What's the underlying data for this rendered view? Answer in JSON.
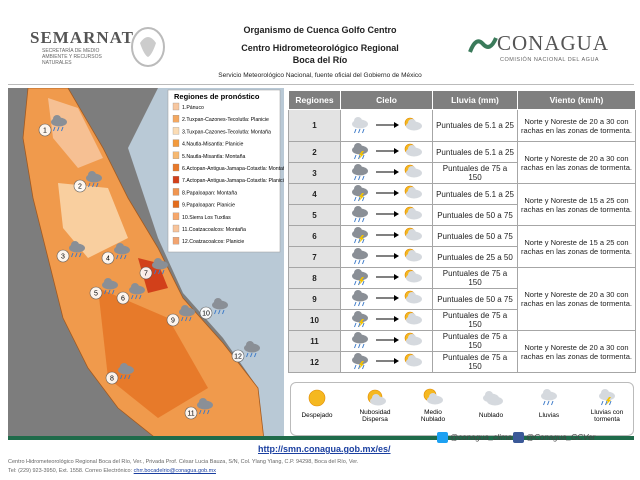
{
  "header": {
    "left_logo": "SEMARNAT",
    "left_sub": "SECRETARÍA DE MEDIO AMBIENTE Y RECURSOS NATURALES",
    "line1": "Organismo de Cuenca Golfo Centro",
    "line2": "Centro Hidrometeorológico Regional",
    "line3": "Boca del Río",
    "line4": "Servicio Meteorológico Nacional, fuente oficial del Gobierno de México",
    "right_logo": "CONAGUA",
    "right_sub": "COMISIÓN NACIONAL DEL AGUA"
  },
  "map": {
    "legend_title": "Regiones de pronóstico",
    "legend": [
      {
        "label": "1.Pánuco",
        "color": "#f7c7a0"
      },
      {
        "label": "2.Tuxpan-Cazones-Tecolutla: Planicie",
        "color": "#f4a860"
      },
      {
        "label": "3.Tuxpan-Cazones-Tecolutla: Montaña",
        "color": "#fbdcb4"
      },
      {
        "label": "4.Nautla-Misantla: Planicie",
        "color": "#f39a3c"
      },
      {
        "label": "5.Nautla-Misantla: Montaña",
        "color": "#f6b870"
      },
      {
        "label": "6.Actopan-Antigua-Jamapa-Cotaxtla: Montaña",
        "color": "#e8792a"
      },
      {
        "label": "7.Actopan-Antigua-Jamapa-Cotaxtla: Planicie",
        "color": "#d2401a"
      },
      {
        "label": "8.Papaloapan: Montaña",
        "color": "#f09550"
      },
      {
        "label": "9.Papaloapan: Planicie",
        "color": "#e36c1c"
      },
      {
        "label": "10.Sierra Los Tuxtlas",
        "color": "#f6a76b"
      },
      {
        "label": "11.Coatzacoalcos: Montaña",
        "color": "#f8c49a"
      },
      {
        "label": "12.Coatzacoalcos: Planicie",
        "color": "#f2a470"
      }
    ],
    "markers": [
      "1",
      "2",
      "3",
      "4",
      "5",
      "6",
      "7",
      "8",
      "9",
      "10",
      "11",
      "12"
    ]
  },
  "table": {
    "headers": [
      "Regiones",
      "Cielo",
      "Lluvia (mm)",
      "Viento (km/h)"
    ],
    "rows": [
      [
        "1",
        "Puntuales de 5.1 a 25",
        "Norte y Noreste de 20 a 30 con rachas en las zonas de tormenta."
      ],
      [
        "2",
        "Puntuales de 5.1 a 25",
        "Norte y Noreste de 20 a 30 con rachas en las zonas de tormenta."
      ],
      [
        "3",
        "Puntuales de 75 a 150",
        null
      ],
      [
        "4",
        "Puntuales de 5.1 a 25",
        "Norte y Noreste de 15 a 25 con rachas en las zonas de tormenta."
      ],
      [
        "5",
        "Puntuales de 50 a 75",
        null
      ],
      [
        "6",
        "Puntuales de 50 a 75",
        "Norte y Noreste de 15 a 25 con rachas en las zonas de tormenta."
      ],
      [
        "7",
        "Puntuales de 25 a 50",
        null
      ],
      [
        "8",
        "Puntuales de 75 a 150",
        "Norte y Noreste de 20 a 30 con rachas en las zonas de tormenta."
      ],
      [
        "9",
        "Puntuales de 50 a 75",
        null
      ],
      [
        "10",
        "Puntuales de 75 a 150",
        null
      ],
      [
        "11",
        "Puntuales de 75 a 150",
        "Norte y Noreste de 20 a 30 con rachas en las zonas de tormenta."
      ],
      [
        "12",
        "Puntuales de 75 a 150",
        null
      ]
    ]
  },
  "icon_legend": [
    "Despejado",
    "Nubosidad Dispersa",
    "Medio Nublado",
    "Nublado",
    "Lluvias",
    "Lluvias con tormenta"
  ],
  "social": [
    "@conagua_clima",
    "@Conagua_GCVer"
  ],
  "url": "http://smn.conagua.gob.mx/es/",
  "footer": {
    "line1": "Centro Hidrometeorológico Regional Boca del Río, Ver., Privada Prof. César Lucia Bauza, S/N, Col. Ylang Ylang, C.P. 94298, Boca del Río, Ver.",
    "line2": "Tel: (229) 923-3950, Ext. 1558. Correo Electrónico:",
    "email": "chrr.bocadelrio@conagua.gob.mx"
  }
}
